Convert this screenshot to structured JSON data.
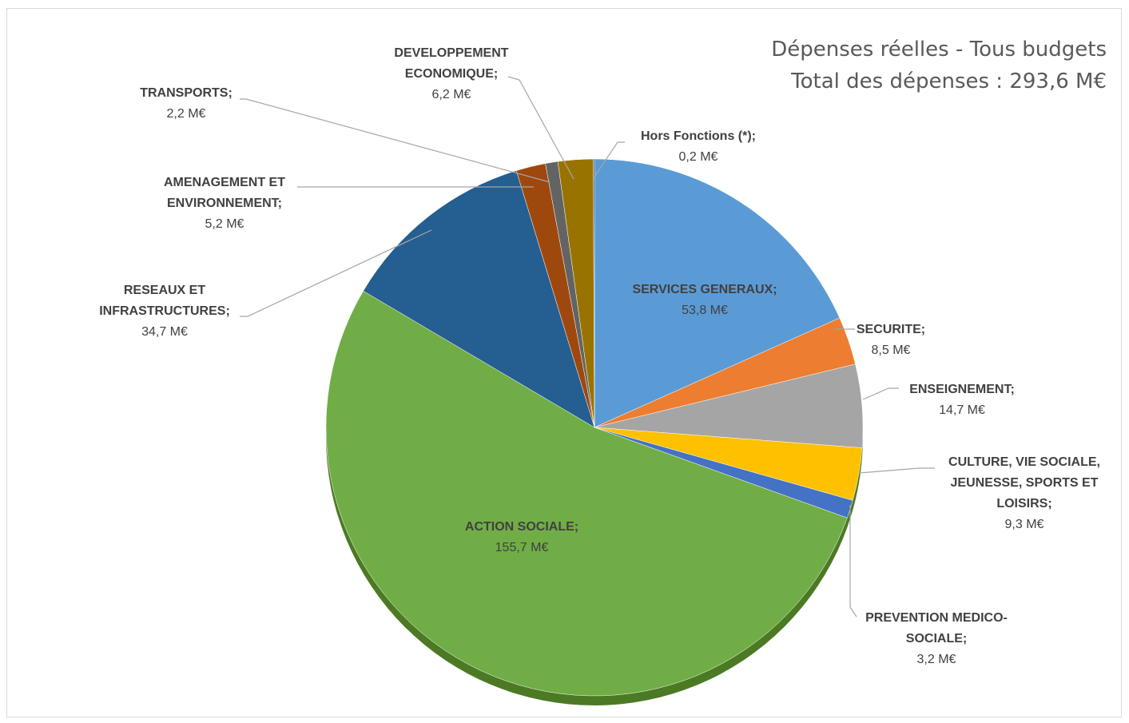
{
  "chart_data": {
    "type": "pie",
    "title": [
      "Dépenses réelles - Tous budgets",
      "Total des dépenses : 293,6 M€"
    ],
    "unit": "M€",
    "slices": [
      {
        "name": "SERVICES GENERAUX",
        "value": 53.8,
        "value_label": "53,8 M€",
        "color": "#5B9BD5"
      },
      {
        "name": "SECURITE",
        "value": 8.5,
        "value_label": "8,5 M€",
        "color": "#ED7D31"
      },
      {
        "name": "ENSEIGNEMENT",
        "value": 14.7,
        "value_label": "14,7 M€",
        "color": "#A5A5A5"
      },
      {
        "name": "CULTURE, VIE SOCIALE, JEUNESSE, SPORTS ET LOISIRS",
        "value": 9.3,
        "value_label": "9,3 M€",
        "color": "#FFC000"
      },
      {
        "name": "PREVENTION MEDICO-SOCIALE",
        "value": 3.2,
        "value_label": "3,2 M€",
        "color": "#4472C4"
      },
      {
        "name": "ACTION SOCIALE",
        "value": 155.7,
        "value_label": "155,7 M€",
        "color": "#70AD47"
      },
      {
        "name": "RESEAUX ET INFRASTRUCTURES",
        "value": 34.7,
        "value_label": "34,7 M€",
        "color": "#255E91"
      },
      {
        "name": "AMENAGEMENT ET ENVIRONNEMENT",
        "value": 5.2,
        "value_label": "5,2 M€",
        "color": "#9E480E"
      },
      {
        "name": "TRANSPORTS",
        "value": 2.2,
        "value_label": "2,2 M€",
        "color": "#636363"
      },
      {
        "name": "DEVELOPPEMENT ECONOMIQUE",
        "value": 6.2,
        "value_label": "6,2 M€",
        "color": "#997300"
      },
      {
        "name": "Hors Fonctions (*)",
        "value": 0.2,
        "value_label": "0,2 M€",
        "color": "#264478"
      }
    ]
  }
}
